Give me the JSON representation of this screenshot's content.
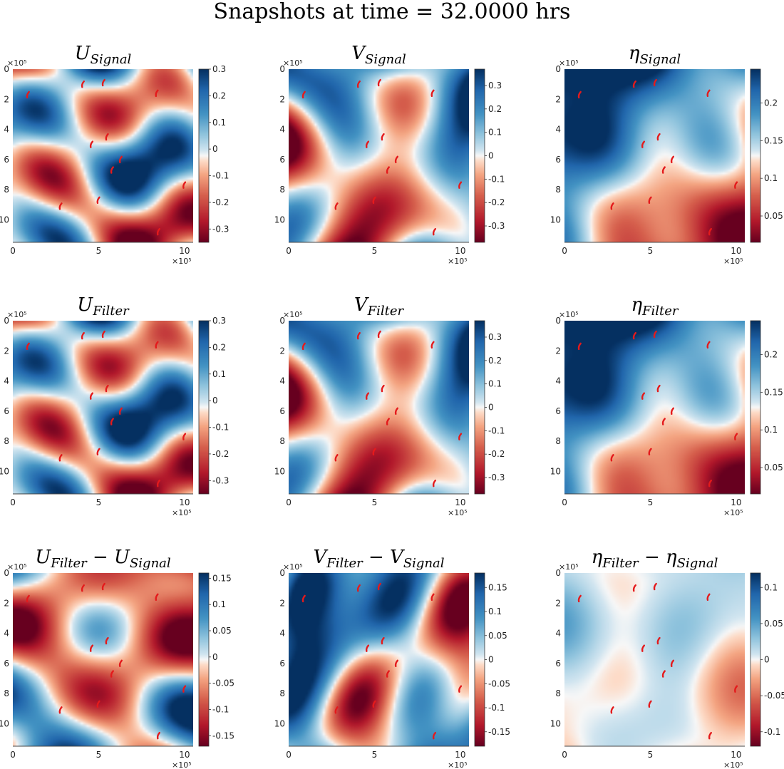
{
  "suptitle": "Snapshots at time = 32.0000 hrs",
  "colormap": {
    "low": "#67001f",
    "mid": "#f7f7f7",
    "high": "#053061"
  },
  "marker_color": "#e41a1c",
  "chart_data": [
    {
      "type": "heatmap",
      "title_base": "U",
      "title_sub": "Signal",
      "title_rest": "",
      "title_sub2": "",
      "xticks": [
        "0",
        "5",
        "10"
      ],
      "yticks": [
        "0",
        "2",
        "4",
        "6",
        "8",
        "10"
      ],
      "multiplier": "×10⁵",
      "xlim": [
        0,
        10.5
      ],
      "ylim": [
        11.5,
        0
      ],
      "colorbar": {
        "min": -0.35,
        "max": 0.3,
        "ticks": [
          "0.3",
          "0.2",
          "0.1",
          "0",
          "-0.1",
          "-0.2",
          "-0.3"
        ],
        "tick_values": [
          0.3,
          0.2,
          0.1,
          0,
          -0.1,
          -0.2,
          -0.3
        ]
      },
      "seed": 11
    },
    {
      "type": "heatmap",
      "title_base": "V",
      "title_sub": "Signal",
      "title_rest": "",
      "title_sub2": "",
      "xticks": [
        "0",
        "5",
        "10"
      ],
      "yticks": [
        "0",
        "2",
        "4",
        "6",
        "8",
        "10"
      ],
      "multiplier": "×10⁵",
      "xlim": [
        0,
        10.5
      ],
      "ylim": [
        11.5,
        0
      ],
      "colorbar": {
        "min": -0.37,
        "max": 0.37,
        "ticks": [
          "0.3",
          "0.2",
          "0.1",
          "0",
          "-0.1",
          "-0.2",
          "-0.3"
        ],
        "tick_values": [
          0.3,
          0.2,
          0.1,
          0,
          -0.1,
          -0.2,
          -0.3
        ]
      },
      "seed": 23
    },
    {
      "type": "heatmap",
      "title_base": "η",
      "title_sub": "Signal",
      "title_rest": "",
      "title_sub2": "",
      "xticks": [
        "0",
        "5",
        "10"
      ],
      "yticks": [
        "0",
        "2",
        "4",
        "6",
        "8",
        "10"
      ],
      "multiplier": "×10⁵",
      "xlim": [
        0,
        10.5
      ],
      "ylim": [
        11.5,
        0
      ],
      "colorbar": {
        "min": 0.015,
        "max": 0.245,
        "ticks": [
          "0.2",
          "0.15",
          "0.1",
          "0.05"
        ],
        "tick_values": [
          0.2,
          0.15,
          0.1,
          0.05
        ]
      },
      "seed": 37
    },
    {
      "type": "heatmap",
      "title_base": "U",
      "title_sub": "Filter",
      "title_rest": "",
      "title_sub2": "",
      "xticks": [
        "0",
        "5",
        "10"
      ],
      "yticks": [
        "0",
        "2",
        "4",
        "6",
        "8",
        "10"
      ],
      "multiplier": "×10⁵",
      "xlim": [
        0,
        10.5
      ],
      "ylim": [
        11.5,
        0
      ],
      "colorbar": {
        "min": -0.35,
        "max": 0.3,
        "ticks": [
          "0.3",
          "0.2",
          "0.1",
          "0",
          "-0.1",
          "-0.2",
          "-0.3"
        ],
        "tick_values": [
          0.3,
          0.2,
          0.1,
          0,
          -0.1,
          -0.2,
          -0.3
        ]
      },
      "seed": 11
    },
    {
      "type": "heatmap",
      "title_base": "V",
      "title_sub": "Filter",
      "title_rest": "",
      "title_sub2": "",
      "xticks": [
        "0",
        "5",
        "10"
      ],
      "yticks": [
        "0",
        "2",
        "4",
        "6",
        "8",
        "10"
      ],
      "multiplier": "×10⁵",
      "xlim": [
        0,
        10.5
      ],
      "ylim": [
        11.5,
        0
      ],
      "colorbar": {
        "min": -0.37,
        "max": 0.37,
        "ticks": [
          "0.3",
          "0.2",
          "0.1",
          "0",
          "-0.1",
          "-0.2",
          "-0.3"
        ],
        "tick_values": [
          0.3,
          0.2,
          0.1,
          0,
          -0.1,
          -0.2,
          -0.3
        ]
      },
      "seed": 23
    },
    {
      "type": "heatmap",
      "title_base": "η",
      "title_sub": "Filter",
      "title_rest": "",
      "title_sub2": "",
      "xticks": [
        "0",
        "5",
        "10"
      ],
      "yticks": [
        "0",
        "2",
        "4",
        "6",
        "8",
        "10"
      ],
      "multiplier": "×10⁵",
      "xlim": [
        0,
        10.5
      ],
      "ylim": [
        11.5,
        0
      ],
      "colorbar": {
        "min": 0.015,
        "max": 0.245,
        "ticks": [
          "0.2",
          "0.15",
          "0.1",
          "0.05"
        ],
        "tick_values": [
          0.2,
          0.15,
          0.1,
          0.05
        ]
      },
      "seed": 37
    },
    {
      "type": "heatmap",
      "title_base": "U",
      "title_sub": "Filter",
      "title_rest": " − U",
      "title_sub2": "Signal",
      "xticks": [
        "0",
        "5",
        "10"
      ],
      "yticks": [
        "0",
        "2",
        "4",
        "6",
        "8",
        "10"
      ],
      "multiplier": "×10⁵",
      "xlim": [
        0,
        10.5
      ],
      "ylim": [
        11.5,
        0
      ],
      "colorbar": {
        "min": -0.17,
        "max": 0.16,
        "ticks": [
          "0.15",
          "0.1",
          "0.05",
          "0",
          "-0.05",
          "-0.1",
          "-0.15"
        ],
        "tick_values": [
          0.15,
          0.1,
          0.05,
          0,
          -0.05,
          -0.1,
          -0.15
        ]
      },
      "seed": 53
    },
    {
      "type": "heatmap",
      "title_base": "V",
      "title_sub": "Filter",
      "title_rest": " − V",
      "title_sub2": "Signal",
      "xticks": [
        "0",
        "5",
        "10"
      ],
      "yticks": [
        "0",
        "2",
        "4",
        "6",
        "8",
        "10"
      ],
      "multiplier": "×10⁵",
      "xlim": [
        0,
        10.5
      ],
      "ylim": [
        11.5,
        0
      ],
      "colorbar": {
        "min": -0.18,
        "max": 0.18,
        "ticks": [
          "0.15",
          "0.1",
          "0.05",
          "0",
          "-0.05",
          "-0.1",
          "-0.15"
        ],
        "tick_values": [
          0.15,
          0.1,
          0.05,
          0,
          -0.05,
          -0.1,
          -0.15
        ]
      },
      "seed": 71
    },
    {
      "type": "heatmap",
      "title_base": "η",
      "title_sub": "Filter",
      "title_rest": " − η",
      "title_sub2": "Signal",
      "xticks": [
        "0",
        "5",
        "10"
      ],
      "yticks": [
        "0",
        "2",
        "4",
        "6",
        "8",
        "10"
      ],
      "multiplier": "×10⁵",
      "xlim": [
        0,
        10.5
      ],
      "ylim": [
        11.5,
        0
      ],
      "colorbar": {
        "min": -0.12,
        "max": 0.12,
        "ticks": [
          "0.1",
          "0.05",
          "0",
          "-0.05",
          "-0.1"
        ],
        "tick_values": [
          0.1,
          0.05,
          0,
          -0.05,
          -0.1
        ]
      },
      "seed": 89
    }
  ],
  "observation_points": [
    {
      "x": 0.9,
      "y": 1.7
    },
    {
      "x": 4.1,
      "y": 1.0
    },
    {
      "x": 5.3,
      "y": 0.9
    },
    {
      "x": 8.4,
      "y": 1.6
    },
    {
      "x": 5.5,
      "y": 4.5
    },
    {
      "x": 4.6,
      "y": 5.0
    },
    {
      "x": 6.3,
      "y": 6.0
    },
    {
      "x": 5.8,
      "y": 6.7
    },
    {
      "x": 10.0,
      "y": 7.7
    },
    {
      "x": 5.0,
      "y": 8.7
    },
    {
      "x": 2.8,
      "y": 9.1
    },
    {
      "x": 8.5,
      "y": 10.8
    }
  ]
}
